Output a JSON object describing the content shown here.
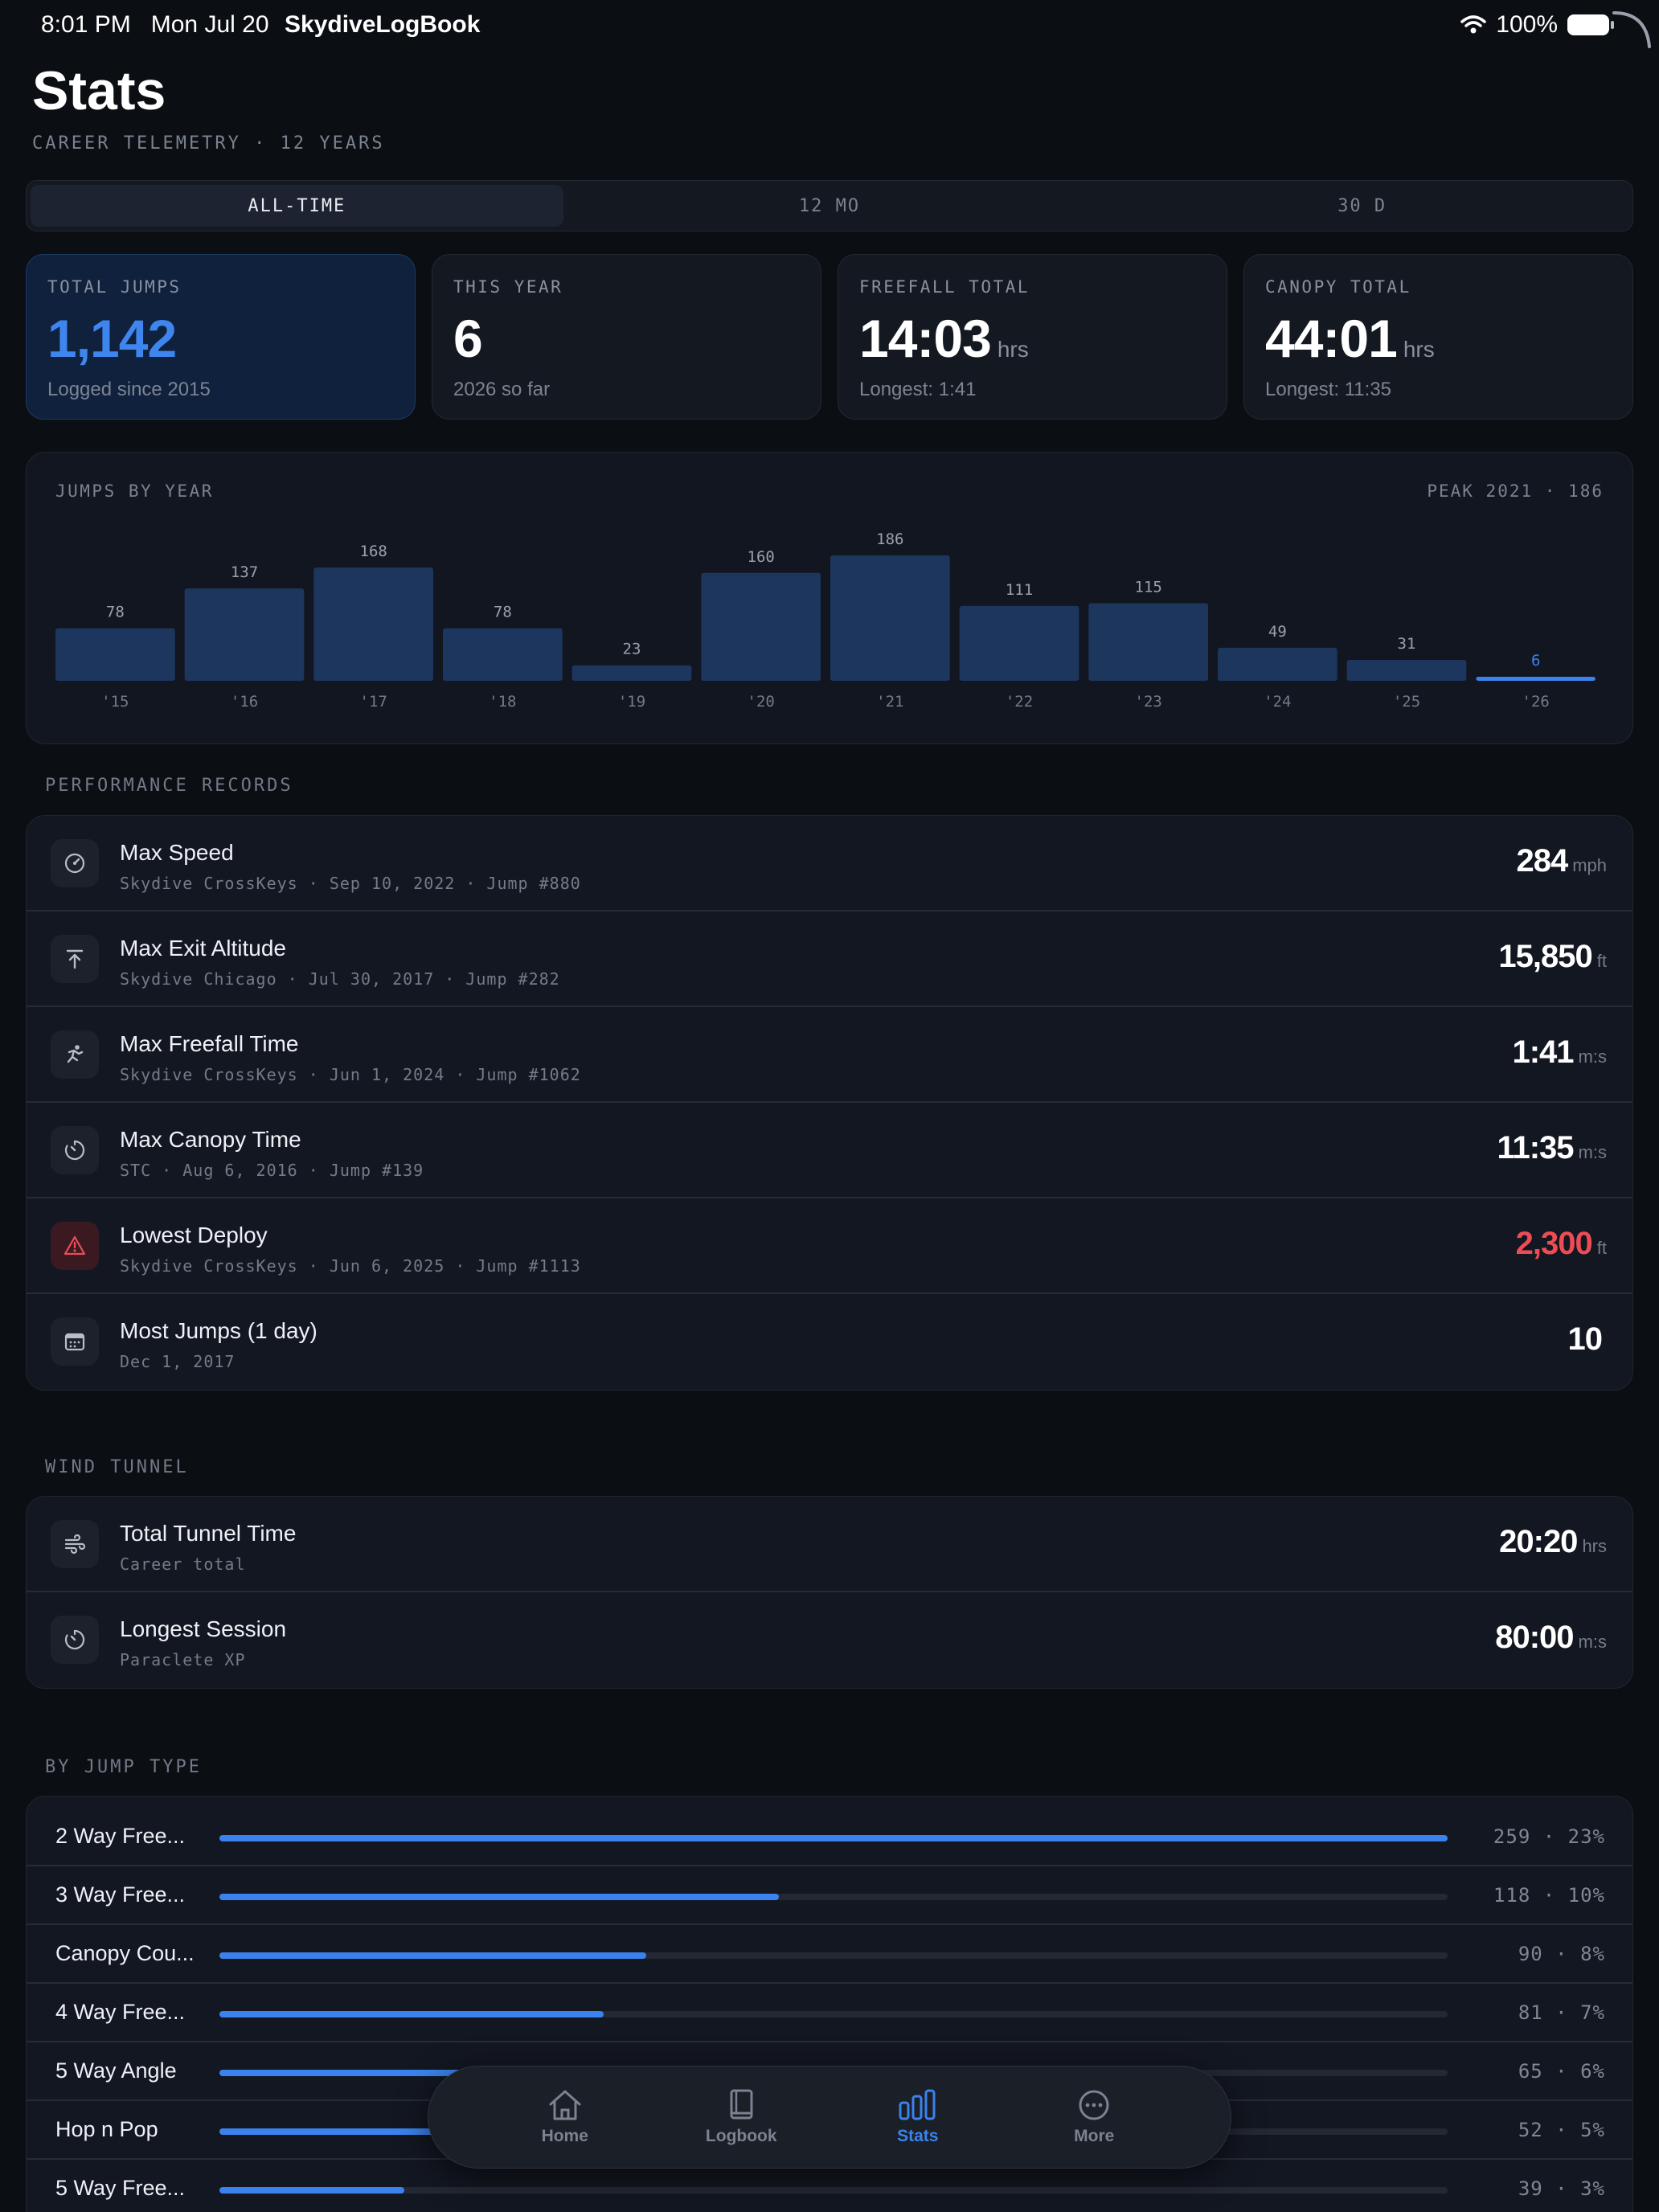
{
  "status_bar": {
    "time": "8:01 PM",
    "date": "Mon Jul 20",
    "app": "SkydiveLogBook",
    "battery": "100%"
  },
  "page": {
    "title": "Stats",
    "subtitle": "CAREER TELEMETRY · 12 YEARS"
  },
  "segments": [
    {
      "label": "ALL-TIME",
      "active": true
    },
    {
      "label": "12 MO",
      "active": false
    },
    {
      "label": "30 D",
      "active": false
    }
  ],
  "stat_cards": [
    {
      "label": "TOTAL JUMPS",
      "value": "1,142",
      "unit": "",
      "sub": "Logged since 2015"
    },
    {
      "label": "THIS YEAR",
      "value": "6",
      "unit": "",
      "sub": "2026 so far"
    },
    {
      "label": "FREEFALL TOTAL",
      "value": "14:03",
      "unit": "hrs",
      "sub": "Longest: 1:41"
    },
    {
      "label": "CANOPY TOTAL",
      "value": "44:01",
      "unit": "hrs",
      "sub": "Longest: 11:35"
    }
  ],
  "chart_data": {
    "type": "bar",
    "title": "JUMPS BY YEAR",
    "annotation": "PEAK 2021 · 186",
    "categories": [
      "'15",
      "'16",
      "'17",
      "'18",
      "'19",
      "'20",
      "'21",
      "'22",
      "'23",
      "'24",
      "'25",
      "'26"
    ],
    "values": [
      78,
      137,
      168,
      78,
      23,
      160,
      186,
      111,
      115,
      49,
      31,
      6
    ],
    "ylim": [
      0,
      186
    ],
    "highlight_index": 11,
    "colors": {
      "bar": "#1d365e",
      "highlight": "#3a83ee"
    }
  },
  "performance": {
    "header": "PERFORMANCE RECORDS",
    "rows": [
      {
        "icon": "speedometer-icon",
        "title": "Max Speed",
        "sub": "Skydive CrossKeys · Sep 10, 2022 · Jump #880",
        "value": "284",
        "unit": "mph"
      },
      {
        "icon": "exit-altitude-icon",
        "title": "Max Exit Altitude",
        "sub": "Skydive Chicago · Jul 30, 2017 · Jump #282",
        "value": "15,850",
        "unit": "ft"
      },
      {
        "icon": "freefall-icon",
        "title": "Max Freefall Time",
        "sub": "Skydive CrossKeys · Jun 1, 2024 · Jump #1062",
        "value": "1:41",
        "unit": "m:s"
      },
      {
        "icon": "timer-icon",
        "title": "Max Canopy Time",
        "sub": "STC · Aug 6, 2016 · Jump #139",
        "value": "11:35",
        "unit": "m:s"
      },
      {
        "icon": "warning-icon",
        "title": "Lowest Deploy",
        "sub": "Skydive CrossKeys · Jun 6, 2025 · Jump #1113",
        "value": "2,300",
        "unit": "ft",
        "alert": true
      },
      {
        "icon": "calendar-icon",
        "title": "Most Jumps (1 day)",
        "sub": "Dec 1, 2017",
        "value": "10",
        "unit": ""
      }
    ]
  },
  "tunnel": {
    "header": "WIND TUNNEL",
    "rows": [
      {
        "icon": "wind-icon",
        "title": "Total Tunnel Time",
        "sub": "Career total",
        "value": "20:20",
        "unit": "hrs"
      },
      {
        "icon": "timer-icon",
        "title": "Longest Session",
        "sub": "Paraclete XP",
        "value": "80:00",
        "unit": "m:s"
      }
    ]
  },
  "jump_types": {
    "header": "BY JUMP TYPE",
    "rows": [
      {
        "label": "2 Way Free...",
        "count": 259,
        "pct": "23%",
        "fill": 1.0
      },
      {
        "label": "3 Way Free...",
        "count": 118,
        "pct": "10%",
        "fill": 0.4556
      },
      {
        "label": "Canopy Cou...",
        "count": 90,
        "pct": "8%",
        "fill": 0.3475
      },
      {
        "label": "4 Way Free...",
        "count": 81,
        "pct": "7%",
        "fill": 0.3127
      },
      {
        "label": "5 Way Angle",
        "count": 65,
        "pct": "6%",
        "fill": 0.251
      },
      {
        "label": "Hop n Pop",
        "count": 52,
        "pct": "5%",
        "fill": 0.2008
      },
      {
        "label": "5 Way Free...",
        "count": 39,
        "pct": "3%",
        "fill": 0.1506
      }
    ]
  },
  "tabbar": {
    "tabs": [
      {
        "label": "Home",
        "icon": "home-icon",
        "active": false
      },
      {
        "label": "Logbook",
        "icon": "book-icon",
        "active": false
      },
      {
        "label": "Stats",
        "icon": "bar-chart-icon",
        "active": true
      },
      {
        "label": "More",
        "icon": "more-icon",
        "active": false
      }
    ]
  }
}
